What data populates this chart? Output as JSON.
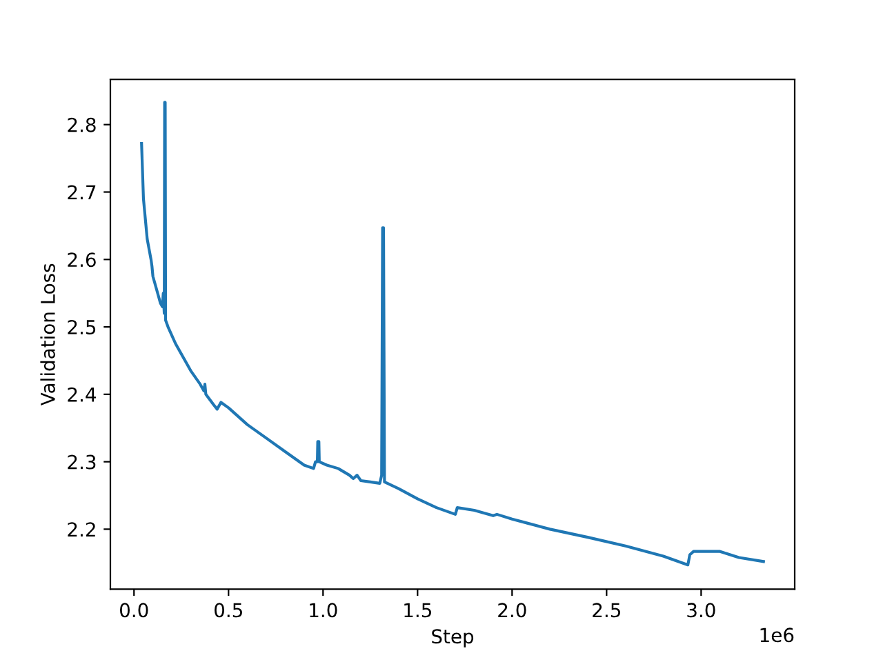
{
  "chart_data": {
    "type": "line",
    "xlabel": "Step",
    "ylabel": "Validation Loss",
    "annotations": [
      "1e6"
    ],
    "xlim": [
      -0.125,
      3.495
    ],
    "xticks": [
      {
        "value": 0,
        "label": "0.0"
      },
      0.5,
      {
        "value": 1,
        "label": "1.0"
      },
      1.5,
      {
        "value": 2,
        "label": "2.0"
      },
      2.5,
      {
        "value": 3,
        "label": "3.0"
      }
    ],
    "ylim": [
      2.111,
      2.867
    ],
    "yticks": [
      2.2,
      2.3,
      2.4,
      2.5,
      2.6,
      2.7,
      2.8
    ],
    "grid": false,
    "legend": false,
    "marker": "none",
    "line_style": "solid",
    "series": [
      {
        "color": "#1f77b4",
        "x": [
          0.04,
          0.05,
          0.07,
          0.09,
          0.095,
          0.1,
          0.11,
          0.12,
          0.13,
          0.14,
          0.15,
          0.155,
          0.16,
          0.162,
          0.165,
          0.167,
          0.18,
          0.22,
          0.26,
          0.3,
          0.35,
          0.37,
          0.375,
          0.38,
          0.42,
          0.44,
          0.46,
          0.5,
          0.6,
          0.7,
          0.8,
          0.85,
          0.9,
          0.95,
          0.96,
          0.97,
          0.972,
          0.978,
          0.98,
          1.02,
          1.08,
          1.14,
          1.16,
          1.18,
          1.2,
          1.25,
          1.3,
          1.31,
          1.315,
          1.32,
          1.325,
          1.4,
          1.5,
          1.6,
          1.7,
          1.71,
          1.8,
          1.9,
          1.92,
          2.0,
          2.2,
          2.4,
          2.6,
          2.8,
          2.93,
          2.94,
          2.96,
          3.1,
          3.2,
          3.33
        ],
        "values": [
          2.772,
          2.69,
          2.63,
          2.6,
          2.59,
          2.575,
          2.565,
          2.555,
          2.545,
          2.535,
          2.53,
          2.55,
          2.52,
          2.833,
          2.833,
          2.51,
          2.5,
          2.475,
          2.455,
          2.435,
          2.415,
          2.405,
          2.415,
          2.4,
          2.385,
          2.378,
          2.388,
          2.38,
          2.355,
          2.335,
          2.315,
          2.305,
          2.295,
          2.29,
          2.3,
          2.3,
          2.33,
          2.33,
          2.3,
          2.295,
          2.29,
          2.28,
          2.275,
          2.28,
          2.272,
          2.27,
          2.268,
          2.28,
          2.647,
          2.647,
          2.27,
          2.26,
          2.245,
          2.232,
          2.222,
          2.232,
          2.228,
          2.22,
          2.222,
          2.215,
          2.2,
          2.188,
          2.175,
          2.16,
          2.147,
          2.162,
          2.167,
          2.167,
          2.158,
          2.152
        ]
      }
    ]
  }
}
